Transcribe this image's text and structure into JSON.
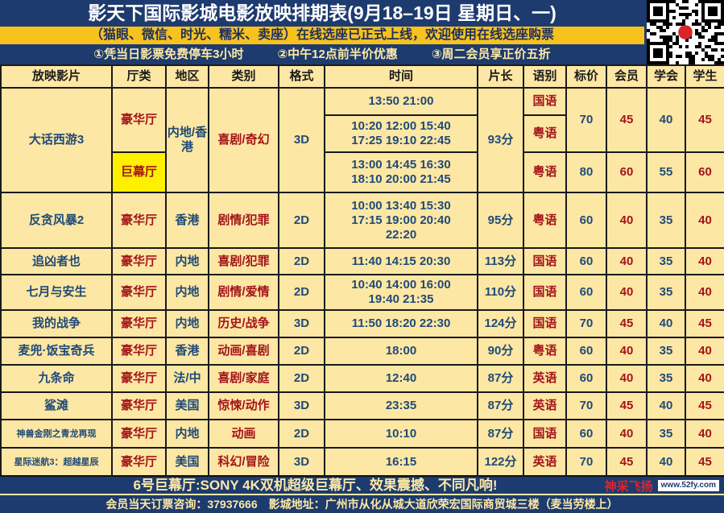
{
  "header": {
    "title": "影天下国际影城电影放映排期表(9月18–19日 星期日、一)",
    "promo": "（猫眼、微信、时光、糯米、卖座）在线选座已正式上线，欢迎使用在线选座购票",
    "notes": [
      "①凭当日影票免费停车3小时",
      "②中午12点前半价优惠",
      "③周二会员享正价五折"
    ]
  },
  "columns": [
    "放映影片",
    "厅类",
    "地区",
    "类别",
    "格式",
    "时间",
    "片长",
    "语别",
    "标价",
    "会员",
    "学会",
    "学生"
  ],
  "featured": {
    "film": "大话西游3",
    "region": "内地/香港",
    "genre": "喜剧/奇幻",
    "format": "3D",
    "length": "93分",
    "halls": [
      "豪华厅",
      "巨幕厅"
    ],
    "sessions": [
      {
        "times": "13:50 21:00",
        "lang": "国语"
      },
      {
        "times": "10:20 12:00 15:40 17:25 19:10 22:45",
        "lang": "粤语"
      },
      {
        "times": "13:00 14:45 16:30 18:10 20:00 21:45",
        "lang": "粤语"
      }
    ],
    "prices": [
      {
        "std": "70",
        "member": "45",
        "assoc": "40",
        "student": "45"
      },
      {
        "std": "80",
        "member": "60",
        "assoc": "55",
        "student": "60"
      }
    ]
  },
  "rows": [
    {
      "film": "反贪风暴2",
      "hall": "豪华厅",
      "region": "香港",
      "genre": "剧情/犯罪",
      "format": "2D",
      "times": "10:00 13:40 15:30 17:15 19:00 20:40 22:20",
      "length": "95分",
      "lang": "粤语",
      "std": "60",
      "member": "40",
      "assoc": "35",
      "student": "40"
    },
    {
      "film": "追凶者也",
      "hall": "豪华厅",
      "region": "内地",
      "genre": "喜剧/犯罪",
      "format": "2D",
      "times": "11:40 14:15 20:30",
      "length": "113分",
      "lang": "国语",
      "std": "60",
      "member": "40",
      "assoc": "35",
      "student": "40"
    },
    {
      "film": "七月与安生",
      "hall": "豪华厅",
      "region": "内地",
      "genre": "剧情/爱情",
      "format": "2D",
      "times": "10:40 14:00 16:00 19:40 21:35",
      "length": "110分",
      "lang": "国语",
      "std": "60",
      "member": "40",
      "assoc": "35",
      "student": "40"
    },
    {
      "film": "我的战争",
      "hall": "豪华厅",
      "region": "内地",
      "genre": "历史/战争",
      "format": "3D",
      "times": "11:50 18:20 22:30",
      "length": "124分",
      "lang": "国语",
      "std": "70",
      "member": "45",
      "assoc": "40",
      "student": "45"
    },
    {
      "film": "麦兜·饭宝奇兵",
      "hall": "豪华厅",
      "region": "香港",
      "genre": "动画/喜剧",
      "format": "2D",
      "times": "18:00",
      "length": "90分",
      "lang": "粤语",
      "std": "60",
      "member": "40",
      "assoc": "35",
      "student": "40"
    },
    {
      "film": "九条命",
      "hall": "豪华厅",
      "region": "法/中",
      "genre": "喜剧/家庭",
      "format": "2D",
      "times": "12:40",
      "length": "87分",
      "lang": "英语",
      "std": "60",
      "member": "40",
      "assoc": "35",
      "student": "40"
    },
    {
      "film": "鲨滩",
      "hall": "豪华厅",
      "region": "美国",
      "genre": "惊悚/动作",
      "format": "3D",
      "times": "23:35",
      "length": "87分",
      "lang": "英语",
      "std": "70",
      "member": "45",
      "assoc": "40",
      "student": "45"
    },
    {
      "film": "神兽金刚之青龙再现",
      "hall": "豪华厅",
      "region": "内地",
      "genre": "动画",
      "format": "2D",
      "times": "10:10",
      "length": "87分",
      "lang": "国语",
      "std": "60",
      "member": "40",
      "assoc": "35",
      "student": "40"
    },
    {
      "film": "星际迷航3：超越星辰",
      "hall": "豪华厅",
      "region": "美国",
      "genre": "科幻/冒险",
      "format": "3D",
      "times": "16:15",
      "length": "122分",
      "lang": "英语",
      "std": "70",
      "member": "45",
      "assoc": "40",
      "student": "45"
    }
  ],
  "footer": {
    "imax": "6号巨幕厅:SONY 4K双机超级巨幕厅、效果震撼、不同凡响!",
    "contact": "会员当天订票咨询：37937666　影城地址：广州市从化从城大道欣荣宏国际商贸城三楼（麦当劳楼上）"
  },
  "watermark": {
    "text": "神采飞扬",
    "url": "www.52fy.com"
  },
  "colors": {
    "navy": "#1d3b6e",
    "yellow": "#f7c21e",
    "cell": "#fde7a4",
    "blue_text": "#1f4a78",
    "red_text": "#a3141a",
    "highlight": "#ffef00"
  }
}
